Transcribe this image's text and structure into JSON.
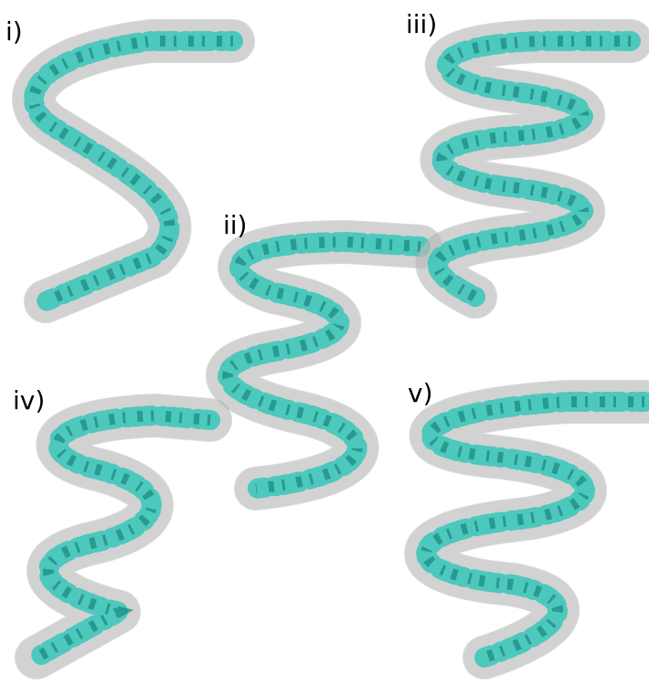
{
  "panels": [
    {
      "label": "i)"
    },
    {
      "label": "ii)"
    },
    {
      "label": "iii)"
    },
    {
      "label": "iv)"
    },
    {
      "label": "v)"
    }
  ]
}
